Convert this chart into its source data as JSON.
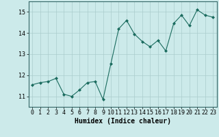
{
  "x": [
    0,
    1,
    2,
    3,
    4,
    5,
    6,
    7,
    8,
    9,
    10,
    11,
    12,
    13,
    14,
    15,
    16,
    17,
    18,
    19,
    20,
    21,
    22,
    23
  ],
  "y": [
    11.55,
    11.65,
    11.7,
    11.85,
    11.1,
    11.0,
    11.3,
    11.65,
    11.7,
    10.85,
    12.55,
    14.2,
    14.6,
    13.95,
    13.6,
    13.35,
    13.65,
    13.15,
    14.45,
    14.85,
    14.35,
    15.1,
    14.85,
    14.75
  ],
  "line_color": "#1a6b5e",
  "marker": "D",
  "marker_size": 2.0,
  "line_width": 0.8,
  "bg_color": "#cceaea",
  "grid_color": "#aacccc",
  "xlabel": "Humidex (Indice chaleur)",
  "xlabel_fontsize": 7,
  "tick_fontsize": 6,
  "xlim": [
    -0.5,
    23.5
  ],
  "ylim": [
    10.5,
    15.5
  ],
  "yticks": [
    11,
    12,
    13,
    14,
    15
  ],
  "xticks": [
    0,
    1,
    2,
    3,
    4,
    5,
    6,
    7,
    8,
    9,
    10,
    11,
    12,
    13,
    14,
    15,
    16,
    17,
    18,
    19,
    20,
    21,
    22,
    23
  ]
}
